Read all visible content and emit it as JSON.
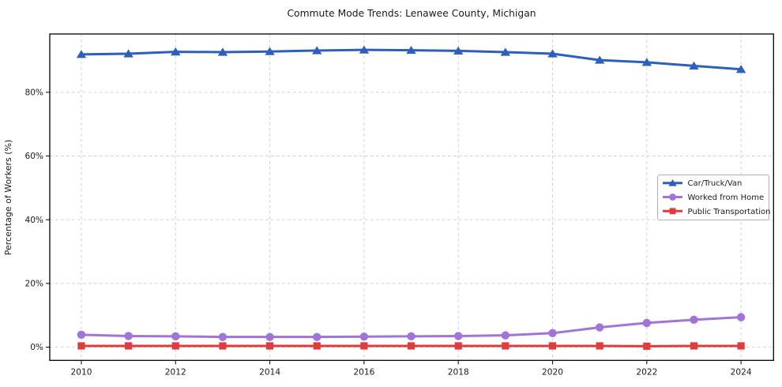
{
  "chart_data": {
    "type": "line",
    "title": "Commute Mode Trends: Lenawee County, Michigan",
    "xlabel": "",
    "ylabel": "Percentage of Workers (%)",
    "x": [
      2010,
      2011,
      2012,
      2013,
      2014,
      2015,
      2016,
      2017,
      2018,
      2019,
      2020,
      2021,
      2022,
      2023,
      2024
    ],
    "series": [
      {
        "name": "Car/Truck/Van",
        "color": "#2d5fbe",
        "marker": "triangle",
        "values": [
          91.9,
          92.1,
          92.7,
          92.6,
          92.8,
          93.1,
          93.3,
          93.2,
          93.0,
          92.6,
          92.1,
          90.1,
          89.4,
          88.3,
          87.2
        ]
      },
      {
        "name": "Worked from Home",
        "color": "#a274d8",
        "marker": "circle",
        "values": [
          3.9,
          3.5,
          3.4,
          3.2,
          3.2,
          3.2,
          3.3,
          3.4,
          3.5,
          3.7,
          4.4,
          6.2,
          7.6,
          8.6,
          9.4
        ]
      },
      {
        "name": "Public Transportation",
        "color": "#e23b3c",
        "marker": "square",
        "values": [
          0.4,
          0.4,
          0.4,
          0.4,
          0.4,
          0.4,
          0.4,
          0.4,
          0.4,
          0.4,
          0.4,
          0.4,
          0.3,
          0.4,
          0.4
        ]
      }
    ],
    "xlim": [
      2009.33,
      2024.69
    ],
    "ylim": [
      -4.15,
      98.3
    ],
    "xticks": [
      2010,
      2012,
      2014,
      2016,
      2018,
      2020,
      2022,
      2024
    ],
    "xtick_labels": [
      "2010",
      "2012",
      "2014",
      "2016",
      "2018",
      "2020",
      "2022",
      "2024"
    ],
    "yticks": [
      0,
      20,
      40,
      60,
      80
    ],
    "ytick_labels": [
      "0%",
      "20%",
      "40%",
      "60%",
      "80%"
    ],
    "grid": true,
    "legend_position": "right-middle",
    "grid_color": "#cccccc",
    "spine_color": "#000000",
    "legend_border_color": "#b0b0b0",
    "background_color": "#ffffff"
  }
}
